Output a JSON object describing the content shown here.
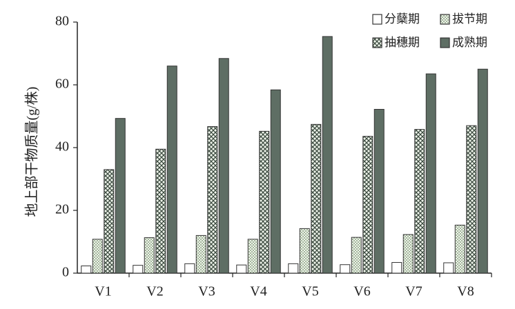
{
  "chart_data": {
    "type": "bar",
    "y_label": "地上部干物质量(g/株)",
    "categories": [
      "V1",
      "V2",
      "V3",
      "V4",
      "V5",
      "V6",
      "V7",
      "V8"
    ],
    "series": [
      {
        "name": "分蘖期",
        "color": "#ffffff",
        "values": [
          2.3,
          2.5,
          3.0,
          2.6,
          3.0,
          2.7,
          3.4,
          3.3
        ]
      },
      {
        "name": "拔节期",
        "color": "#cfe0c6",
        "values": [
          10.8,
          11.3,
          12.0,
          10.8,
          14.2,
          11.4,
          12.3,
          15.3
        ]
      },
      {
        "name": "抽穗期",
        "color": "#dfe9da",
        "values": [
          33.0,
          39.5,
          46.7,
          45.2,
          47.4,
          43.6,
          45.8,
          47.0
        ]
      },
      {
        "name": "成熟期",
        "color": "#5e6e64",
        "values": [
          49.3,
          66.0,
          68.4,
          58.4,
          75.4,
          52.2,
          63.5,
          65.0
        ]
      }
    ],
    "ylim": [
      0,
      80
    ],
    "yticks": [
      0,
      20,
      40,
      60,
      80
    ],
    "grid": false
  }
}
